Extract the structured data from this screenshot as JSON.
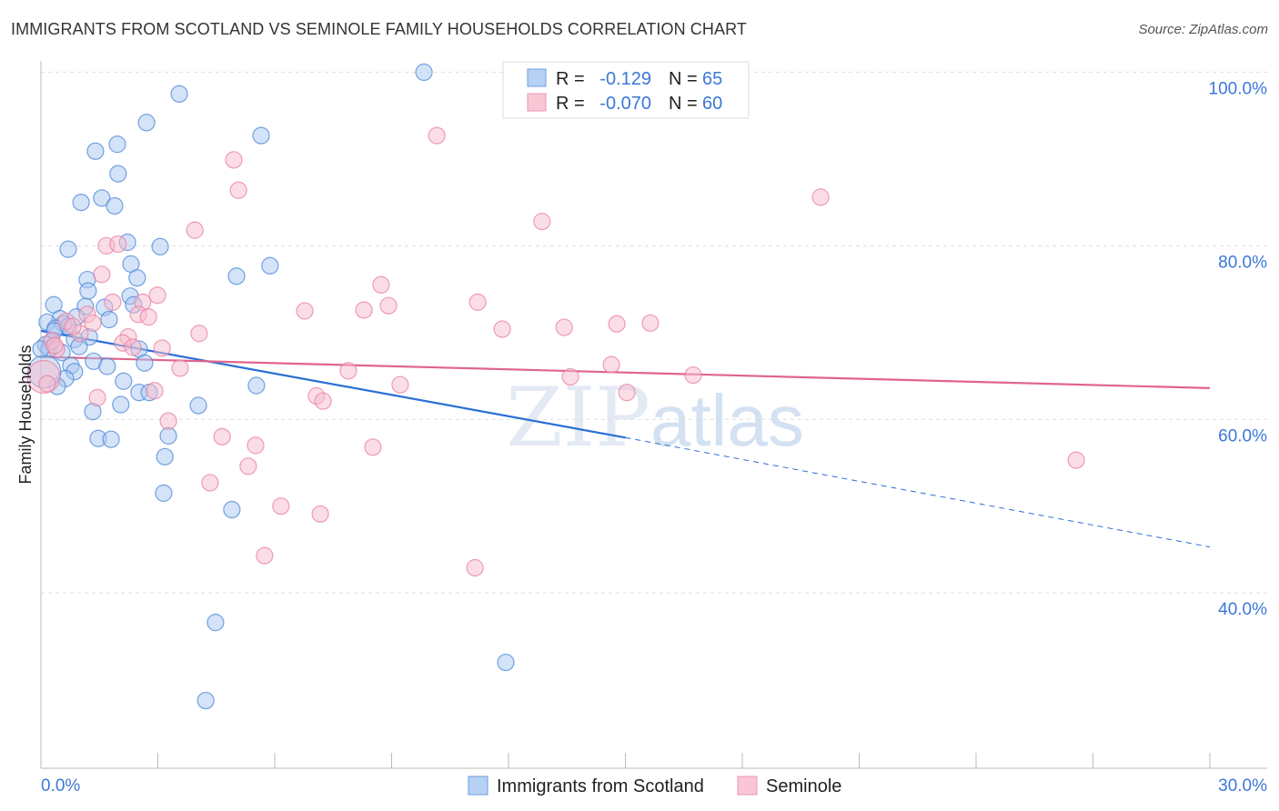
{
  "header": {
    "title": "IMMIGRANTS FROM SCOTLAND VS SEMINOLE FAMILY HOUSEHOLDS CORRELATION CHART",
    "source": "Source: ZipAtlas.com"
  },
  "watermark": "ZIPatlas",
  "chart_data": {
    "type": "scatter",
    "title": "IMMIGRANTS FROM SCOTLAND VS SEMINOLE FAMILY HOUSEHOLDS CORRELATION CHART",
    "xlabel": "",
    "ylabel": "Family Households",
    "xlim": [
      0,
      30
    ],
    "ylim": [
      19.8,
      101.3
    ],
    "x_tick_labels": [
      "0.0%",
      "30.0%"
    ],
    "y_ticks": [
      {
        "value": 100,
        "label": "100.0%"
      },
      {
        "value": 80,
        "label": "80.0%"
      },
      {
        "value": 60,
        "label": "60.0%"
      },
      {
        "value": 40,
        "label": "40.0%"
      }
    ],
    "grid": true,
    "legend_placement": "top-center",
    "stats": [
      {
        "r_label": "R =",
        "r": "-0.129",
        "n_label": "N =",
        "n": "65"
      },
      {
        "r_label": "R =",
        "r": "-0.070",
        "n_label": "N =",
        "n": "60"
      }
    ],
    "series": [
      {
        "name": "Immigrants from Scotland",
        "color": "#4a86d8",
        "fill": "#a9c8f0",
        "trend": {
          "x0": 0,
          "y0": 70.2,
          "x1": 15,
          "y1": 57.9,
          "x_dash_end": 30,
          "y_dash_end": 45.3
        },
        "points": [
          [
            9.83,
            100
          ],
          [
            3.55,
            97.5
          ],
          [
            2.71,
            94.2
          ],
          [
            5.65,
            92.7
          ],
          [
            1.96,
            91.7
          ],
          [
            1.4,
            90.9
          ],
          [
            1.98,
            88.3
          ],
          [
            1.56,
            85.5
          ],
          [
            1.03,
            85.0
          ],
          [
            1.89,
            84.6
          ],
          [
            2.22,
            80.4
          ],
          [
            0.7,
            79.6
          ],
          [
            3.06,
            79.9
          ],
          [
            2.31,
            77.9
          ],
          [
            5.88,
            77.7
          ],
          [
            5.02,
            76.5
          ],
          [
            1.19,
            76.1
          ],
          [
            2.47,
            76.3
          ],
          [
            1.21,
            74.8
          ],
          [
            2.29,
            74.2
          ],
          [
            0.33,
            73.2
          ],
          [
            1.63,
            72.9
          ],
          [
            2.38,
            73.2
          ],
          [
            1.14,
            73.0
          ],
          [
            0.49,
            71.6
          ],
          [
            1.75,
            71.5
          ],
          [
            0.91,
            71.8
          ],
          [
            0.58,
            71.0
          ],
          [
            0.16,
            71.2
          ],
          [
            0.37,
            70.5
          ],
          [
            1.24,
            69.5
          ],
          [
            0.86,
            69.2
          ],
          [
            0.26,
            68.9
          ],
          [
            0.12,
            68.6
          ],
          [
            0.21,
            68.1
          ],
          [
            0.98,
            68.4
          ],
          [
            0.54,
            67.7
          ],
          [
            2.52,
            68.1
          ],
          [
            1.35,
            66.7
          ],
          [
            1.7,
            66.1
          ],
          [
            2.66,
            66.5
          ],
          [
            0.77,
            66.2
          ],
          [
            0.86,
            65.5
          ],
          [
            0.63,
            64.7
          ],
          [
            2.12,
            64.4
          ],
          [
            5.53,
            63.9
          ],
          [
            0.42,
            63.8
          ],
          [
            2.52,
            63.1
          ],
          [
            2.78,
            63.1
          ],
          [
            1.33,
            60.9
          ],
          [
            2.05,
            61.7
          ],
          [
            4.04,
            61.6
          ],
          [
            1.47,
            57.8
          ],
          [
            1.8,
            57.7
          ],
          [
            3.27,
            58.1
          ],
          [
            3.18,
            55.7
          ],
          [
            3.15,
            51.5
          ],
          [
            4.9,
            49.6
          ],
          [
            4.48,
            36.6
          ],
          [
            11.93,
            32.0
          ],
          [
            4.23,
            27.6
          ],
          [
            0.09,
            65.5,
            "big"
          ],
          [
            0.35,
            70.2
          ],
          [
            0.0,
            68.1
          ],
          [
            0.7,
            70.7
          ]
        ]
      },
      {
        "name": "Seminole",
        "color": "#e87fa0",
        "fill": "#f7bccd",
        "trend": {
          "x0": 0,
          "y0": 67.2,
          "x1": 30,
          "y1": 63.6
        },
        "points": [
          [
            10.16,
            92.7
          ],
          [
            4.95,
            89.9
          ],
          [
            5.07,
            86.4
          ],
          [
            20.01,
            85.6
          ],
          [
            3.95,
            81.8
          ],
          [
            12.86,
            82.8
          ],
          [
            1.68,
            80.0
          ],
          [
            1.98,
            80.2
          ],
          [
            1.56,
            76.7
          ],
          [
            8.73,
            75.5
          ],
          [
            11.21,
            73.5
          ],
          [
            6.77,
            72.5
          ],
          [
            8.29,
            72.6
          ],
          [
            8.92,
            73.1
          ],
          [
            2.99,
            74.3
          ],
          [
            1.84,
            73.5
          ],
          [
            2.61,
            73.5
          ],
          [
            2.5,
            72.1
          ],
          [
            2.76,
            71.8
          ],
          [
            1.19,
            72.1
          ],
          [
            0.65,
            71.3
          ],
          [
            1.33,
            71.1
          ],
          [
            11.84,
            70.4
          ],
          [
            13.43,
            70.6
          ],
          [
            14.78,
            71.0
          ],
          [
            15.64,
            71.1
          ],
          [
            4.06,
            69.9
          ],
          [
            2.24,
            69.5
          ],
          [
            1.0,
            69.9
          ],
          [
            2.1,
            68.8
          ],
          [
            2.36,
            68.3
          ],
          [
            3.11,
            68.2
          ],
          [
            0.28,
            69.1
          ],
          [
            0.4,
            68.1
          ],
          [
            3.57,
            65.9
          ],
          [
            7.89,
            65.6
          ],
          [
            13.59,
            64.9
          ],
          [
            14.64,
            66.3
          ],
          [
            16.74,
            65.1
          ],
          [
            9.22,
            64.0
          ],
          [
            2.92,
            63.3
          ],
          [
            7.07,
            62.7
          ],
          [
            7.24,
            62.1
          ],
          [
            1.45,
            62.5
          ],
          [
            15.04,
            63.1
          ],
          [
            3.27,
            59.8
          ],
          [
            4.65,
            58.0
          ],
          [
            5.51,
            57.0
          ],
          [
            8.52,
            56.8
          ],
          [
            5.32,
            54.6
          ],
          [
            4.34,
            52.7
          ],
          [
            6.16,
            50.0
          ],
          [
            7.17,
            49.1
          ],
          [
            26.57,
            55.3
          ],
          [
            5.74,
            44.3
          ],
          [
            11.14,
            42.9
          ],
          [
            0.07,
            64.9,
            "big"
          ],
          [
            0.16,
            64.1
          ],
          [
            0.82,
            70.7
          ],
          [
            0.35,
            68.5
          ]
        ]
      }
    ]
  }
}
